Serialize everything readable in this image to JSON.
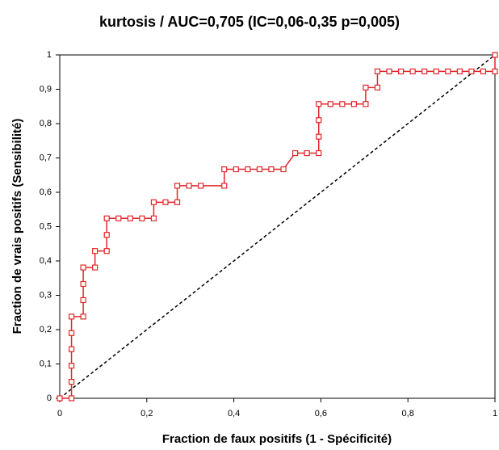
{
  "chart_data": {
    "type": "line",
    "title": "kurtosis / AUC=0,705 (IC=0,06-0,35 p=0,005)",
    "x_label": "Fraction de faux positifs (1 - Spécificité)",
    "y_label": "Fraction de vrais positifs (Sensibilité)",
    "color": "#e0262a",
    "x": [
      0,
      0.027,
      0.027,
      0.027,
      0.027,
      0.027,
      0.027,
      0.054,
      0.054,
      0.054,
      0.054,
      0.081,
      0.081,
      0.108,
      0.108,
      0.108,
      0.135,
      0.162,
      0.189,
      0.216,
      0.216,
      0.243,
      0.27,
      0.27,
      0.297,
      0.324,
      0.378,
      0.378,
      0.405,
      0.432,
      0.459,
      0.486,
      0.514,
      0.541,
      0.568,
      0.595,
      0.595,
      0.595,
      0.595,
      0.622,
      0.649,
      0.676,
      0.703,
      0.703,
      0.73,
      0.73,
      0.757,
      0.784,
      0.811,
      0.838,
      0.865,
      0.892,
      0.919,
      0.946,
      0.973,
      1,
      1
    ],
    "values": [
      0,
      0,
      0.048,
      0.095,
      0.143,
      0.19,
      0.238,
      0.238,
      0.286,
      0.333,
      0.381,
      0.381,
      0.429,
      0.429,
      0.476,
      0.524,
      0.524,
      0.524,
      0.524,
      0.524,
      0.571,
      0.571,
      0.571,
      0.619,
      0.619,
      0.619,
      0.619,
      0.667,
      0.667,
      0.667,
      0.667,
      0.667,
      0.667,
      0.714,
      0.714,
      0.714,
      0.762,
      0.81,
      0.857,
      0.857,
      0.857,
      0.857,
      0.857,
      0.905,
      0.905,
      0.952,
      0.952,
      0.952,
      0.952,
      0.952,
      0.952,
      0.952,
      0.952,
      0.952,
      0.952,
      0.952,
      1
    ],
    "xlim": [
      0,
      1
    ],
    "ylim": [
      0,
      1
    ],
    "xticks": [
      0,
      {
        "value": 0.2,
        "label": "0,2"
      },
      {
        "value": 0.4,
        "label": "0,4"
      },
      {
        "value": 0.6,
        "label": "0,6"
      },
      {
        "value": 0.8,
        "label": "0,8"
      },
      1
    ],
    "yticks": [
      0,
      {
        "value": 0.1,
        "label": "0,1"
      },
      {
        "value": 0.2,
        "label": "0,2"
      },
      {
        "value": 0.3,
        "label": "0,3"
      },
      {
        "value": 0.4,
        "label": "0,4"
      },
      {
        "value": 0.5,
        "label": "0,5"
      },
      {
        "value": 0.6,
        "label": "0,6"
      },
      {
        "value": 0.7,
        "label": "0,7"
      },
      {
        "value": 0.8,
        "label": "0,8"
      },
      {
        "value": 0.9,
        "label": "0,9"
      },
      1
    ]
  }
}
